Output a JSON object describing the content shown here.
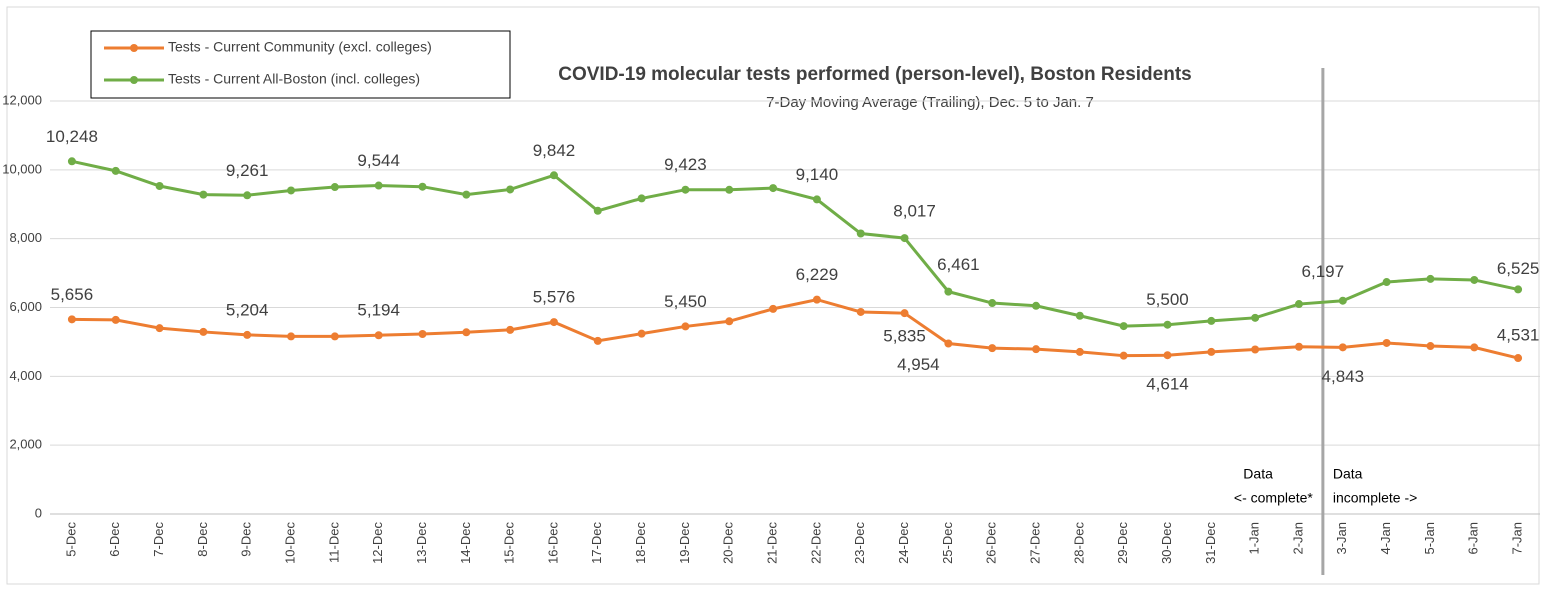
{
  "chart_data": {
    "type": "line",
    "title": "COVID-19 molecular tests performed (person-level), Boston Residents",
    "subtitle": "7-Day Moving Average (Trailing), Dec. 5 to Jan. 7",
    "categories": [
      "5-Dec",
      "6-Dec",
      "7-Dec",
      "8-Dec",
      "9-Dec",
      "10-Dec",
      "11-Dec",
      "12-Dec",
      "13-Dec",
      "14-Dec",
      "15-Dec",
      "16-Dec",
      "17-Dec",
      "18-Dec",
      "19-Dec",
      "20-Dec",
      "21-Dec",
      "22-Dec",
      "23-Dec",
      "24-Dec",
      "25-Dec",
      "26-Dec",
      "27-Dec",
      "28-Dec",
      "29-Dec",
      "30-Dec",
      "31-Dec",
      "1-Jan",
      "2-Jan",
      "3-Jan",
      "4-Jan",
      "5-Jan",
      "6-Jan",
      "7-Jan"
    ],
    "series": [
      {
        "name": "Tests - Current Community (excl. colleges)",
        "color": "#ed7d31",
        "values": [
          5656,
          5640,
          5400,
          5290,
          5204,
          5160,
          5160,
          5194,
          5230,
          5280,
          5350,
          5576,
          5030,
          5240,
          5450,
          5600,
          5960,
          6229,
          5870,
          5835,
          4954,
          4820,
          4790,
          4710,
          4600,
          4614,
          4710,
          4780,
          4860,
          4843,
          4970,
          4880,
          4840,
          4531
        ],
        "value_labels": [
          "5,656",
          null,
          null,
          null,
          "5,204",
          null,
          null,
          "5,194",
          null,
          null,
          null,
          "5,576",
          null,
          null,
          "5,450",
          null,
          null,
          "6,229",
          null,
          "5,835",
          "4,954",
          null,
          null,
          null,
          null,
          "4,614",
          null,
          null,
          null,
          "4,843",
          null,
          null,
          null,
          "4,531"
        ]
      },
      {
        "name": "Tests - Current All-Boston (incl. colleges)",
        "color": "#70ad47",
        "values": [
          10248,
          9970,
          9530,
          9280,
          9261,
          9400,
          9500,
          9544,
          9510,
          9280,
          9430,
          9842,
          8810,
          9170,
          9423,
          9420,
          9470,
          9140,
          8150,
          8017,
          6461,
          6130,
          6050,
          5760,
          5460,
          5500,
          5610,
          5700,
          6100,
          6197,
          6740,
          6830,
          6800,
          6525
        ],
        "value_labels": [
          "10,248",
          null,
          null,
          null,
          "9,261",
          null,
          null,
          "9,544",
          null,
          null,
          null,
          "9,842",
          null,
          null,
          "9,423",
          null,
          null,
          "9,140",
          null,
          "8,017",
          "6,461",
          null,
          null,
          null,
          null,
          "5,500",
          null,
          null,
          null,
          "6,197",
          null,
          null,
          null,
          "6,525"
        ]
      }
    ],
    "ylim": [
      0,
      12000
    ],
    "yticks": [
      {
        "value": 0,
        "label": "0"
      },
      {
        "value": 2000,
        "label": "2,000"
      },
      {
        "value": 4000,
        "label": "4,000"
      },
      {
        "value": 6000,
        "label": "6,000"
      },
      {
        "value": 8000,
        "label": "8,000"
      },
      {
        "value": 10000,
        "label": "10,000"
      },
      {
        "value": 12000,
        "label": "12,000"
      }
    ],
    "grid": true,
    "legend": "top-left",
    "annotations": [
      {
        "lines": [
          "Data",
          "<- complete*"
        ]
      },
      {
        "lines": [
          "Data",
          "incomplete ->"
        ]
      }
    ]
  }
}
